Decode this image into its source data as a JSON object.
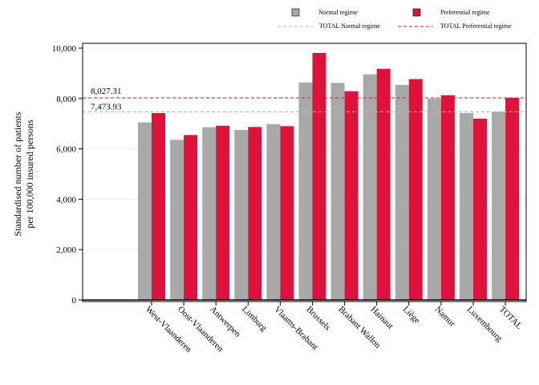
{
  "chart_data": {
    "type": "bar",
    "title": "",
    "xlabel": "",
    "ylabel_lines": [
      "Standardised number of patients",
      "per 100,000 insured persons"
    ],
    "ylim": [
      0,
      10000
    ],
    "yticks": [
      0,
      2000,
      4000,
      6000,
      8000,
      10000
    ],
    "ytick_labels": [
      "0",
      "2,000",
      "4,000",
      "6,000",
      "8,000",
      "10,000"
    ],
    "grid": true,
    "legend_position": "top",
    "categories": [
      "West-Vlaanderen",
      "Oost-Vlaanderen",
      "Antwerpen",
      "Limburg",
      "Vlaams-Brabant",
      "Brussels",
      "Brabant Wallon",
      "Hainaut",
      "Liège",
      "Namur",
      "Luxembourg",
      "TOTAL"
    ],
    "series": [
      {
        "name": "Normal regime",
        "color": "#a9a9a9",
        "values": [
          7050,
          6360,
          6860,
          6750,
          6980,
          8640,
          8620,
          8960,
          8540,
          7990,
          7420,
          7474
        ]
      },
      {
        "name": "Preferential regime",
        "color": "#dc143c",
        "values": [
          7420,
          6550,
          6920,
          6870,
          6900,
          9810,
          8290,
          9180,
          8770,
          8130,
          7200,
          8027
        ]
      }
    ],
    "reference_lines": [
      {
        "name": "TOTAL Normal regime",
        "value": 7473.93,
        "label": "7,473.93",
        "color": "#b0b0b0"
      },
      {
        "name": "TOTAL Preferential regime",
        "value": 8027.31,
        "label": "8,027.31",
        "color": "#dc143c"
      }
    ]
  }
}
